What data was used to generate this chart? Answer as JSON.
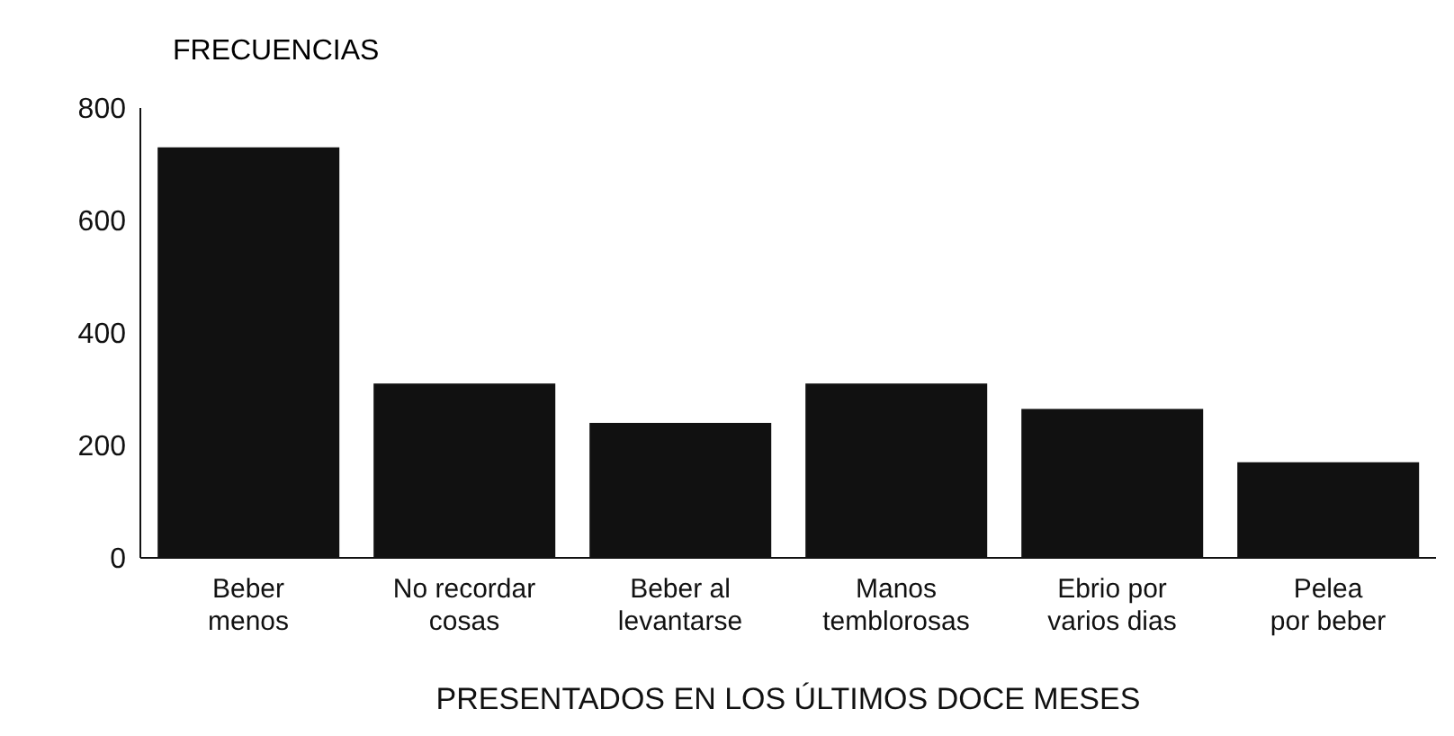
{
  "chart_data": {
    "type": "bar",
    "ylabel": "FRECUENCIAS",
    "xlabel": "PRESENTADOS EN LOS ÚLTIMOS DOCE MESES",
    "categories": [
      "Beber\nmenos",
      "No recordar\ncosas",
      "Beber al\nlevantarse",
      "Manos\ntemblorosas",
      "Ebrio por\nvarios dias",
      "Pelea\npor beber"
    ],
    "values": [
      730,
      310,
      240,
      310,
      265,
      170
    ],
    "color": "#111111",
    "ylim": [
      0,
      800
    ],
    "yticks": [
      0,
      200,
      400,
      600,
      800
    ],
    "grid": false,
    "legend": false
  }
}
